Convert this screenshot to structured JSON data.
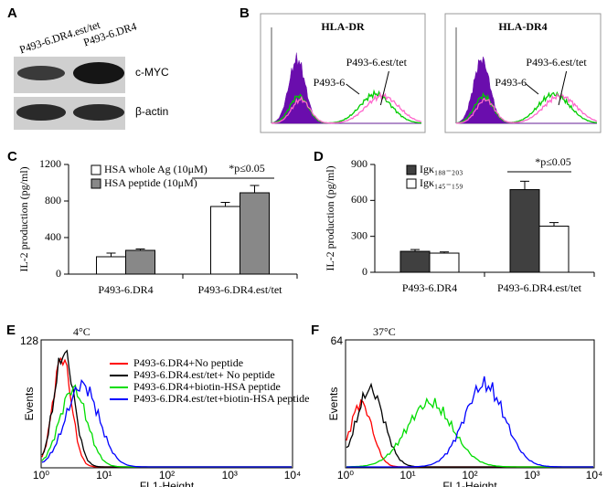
{
  "panels": {
    "A": {
      "letter": "A",
      "lanes": [
        "P493-6.DR4.est/tet",
        "P493-6.DR4"
      ],
      "bands": [
        "c-MYC",
        "β-actin"
      ]
    },
    "B": {
      "letter": "B",
      "plots": [
        {
          "title": "HLA-DR",
          "labels": [
            "P493-6.est/tet",
            "P493-6"
          ]
        },
        {
          "title": "HLA-DR4",
          "labels": [
            "P493-6.est/tet",
            "P493-6"
          ]
        }
      ]
    },
    "E": {
      "letter": "E",
      "condition": "4°C",
      "y_label": "Events",
      "y_top": "128",
      "x_label": "FL1-Height",
      "x_ticks": [
        "10⁰",
        "10¹",
        "10²",
        "10³",
        "10⁴"
      ],
      "legend": [
        {
          "name": "P493-6.DR4+No  peptide",
          "color": "#ff0000"
        },
        {
          "name": "P493-6.DR4.est/tet+  No  peptide",
          "color": "#000000"
        },
        {
          "name": "P493-6.DR4+biotin-HSA  peptide",
          "color": "#00dd00"
        },
        {
          "name": "P493-6.DR4.est/tet+biotin-HSA  peptide",
          "color": "#0000ff"
        }
      ]
    },
    "F": {
      "letter": "F",
      "condition": "37°C",
      "y_label": "Events",
      "y_top": "64",
      "x_label": "FL1-Height",
      "x_ticks": [
        "10⁰",
        "10¹",
        "10²",
        "10³",
        "10⁴"
      ]
    }
  },
  "chart_data": [
    {
      "type": "bar",
      "letter": "C",
      "y_label": "IL-2 production (pg/ml)",
      "categories": [
        "P493-6.DR4",
        "P493-6.DR4.est/tet"
      ],
      "series": [
        {
          "name": "HSA whole Ag (10μM)",
          "color": "#ffffff",
          "values": [
            190,
            740
          ],
          "errors": [
            40,
            45
          ]
        },
        {
          "name": "HSA peptide (10μM)",
          "color": "#888888",
          "values": [
            260,
            890
          ],
          "errors": [
            15,
            80
          ]
        }
      ],
      "ylim": [
        0,
        1200
      ],
      "yticks": [
        0,
        400,
        800,
        1200
      ],
      "annotation": "*p≤0.05"
    },
    {
      "type": "bar",
      "letter": "D",
      "y_label": "IL-2 production (pg/ml)",
      "categories": [
        "P493-6.DR4",
        "P493-6.DR4.est/tet"
      ],
      "series": [
        {
          "name": "Igκ₁₈₈₋₂₀₃",
          "color": "#404040",
          "values": [
            175,
            690
          ],
          "errors": [
            15,
            70
          ]
        },
        {
          "name": "Igκ₁₄₅₋₁₅₉",
          "color": "#ffffff",
          "values": [
            160,
            385
          ],
          "errors": [
            10,
            30
          ]
        }
      ],
      "ylim": [
        0,
        900
      ],
      "yticks": [
        0,
        300,
        600,
        900
      ],
      "annotation": "*p≤0.05"
    }
  ]
}
